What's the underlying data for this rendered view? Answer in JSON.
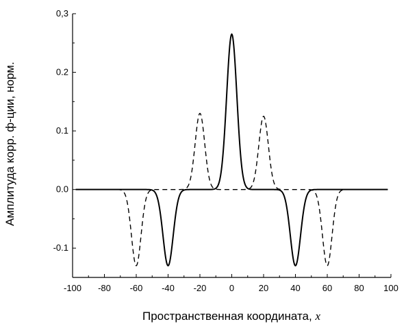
{
  "chart_data": {
    "type": "line",
    "title": "",
    "xlabel": "Пространственная координата,",
    "xlabel_var": "x",
    "ylabel": "Амплитуда корр. ф-ции, норм.",
    "xlim": [
      -100,
      100
    ],
    "ylim": [
      -0.15,
      0.3
    ],
    "x_ticks": [
      "-100",
      "-80",
      "-60",
      "-40",
      "-20",
      "0",
      "20",
      "40",
      "60",
      "80",
      "100"
    ],
    "y_ticks": [
      "-0.1",
      "0.0",
      "0.1",
      "0.2",
      "0,3"
    ],
    "grid": false,
    "legend": "none",
    "series": [
      {
        "style": "solid",
        "color": "#000000",
        "peaks": [
          {
            "center": -40,
            "amplitude": -0.13,
            "width": 3.2
          },
          {
            "center": 0,
            "amplitude": 0.265,
            "width": 3.2
          },
          {
            "center": 40,
            "amplitude": -0.13,
            "width": 3.2
          }
        ]
      },
      {
        "style": "dashed",
        "color": "#000000",
        "peaks": [
          {
            "center": -60,
            "amplitude": -0.13,
            "width": 3.0
          },
          {
            "center": -20,
            "amplitude": 0.13,
            "width": 3.0
          },
          {
            "center": 20,
            "amplitude": 0.125,
            "width": 3.0
          },
          {
            "center": 60,
            "amplitude": -0.13,
            "width": 3.0
          }
        ]
      }
    ]
  }
}
